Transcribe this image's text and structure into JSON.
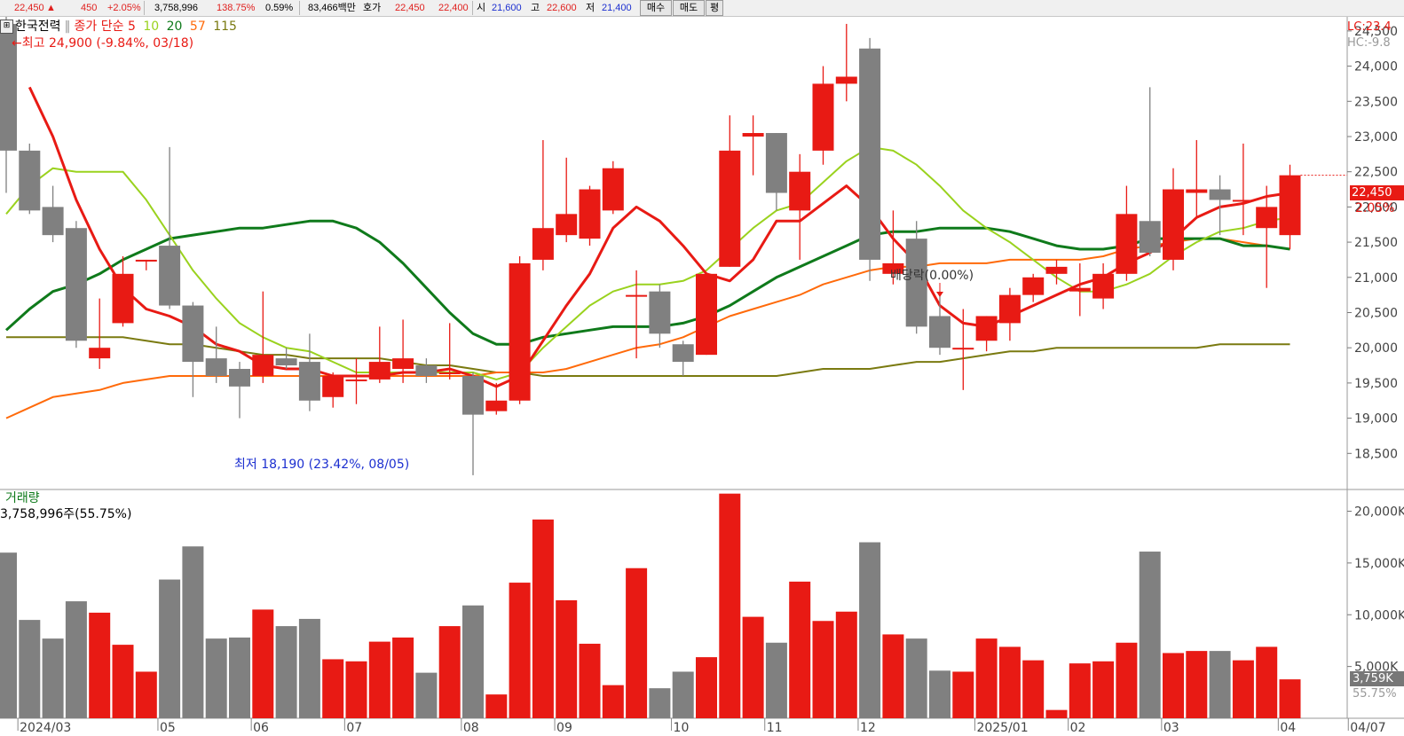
{
  "topbar": {
    "price": "22,450",
    "up_icon": "▲",
    "change": "450",
    "change_pct": "+2.05%",
    "volume": "3,758,996",
    "volume_ratio": "138.75%",
    "turnover": "0.59%",
    "amount": "83,466백만",
    "hoga_label": "호가",
    "hoga_ask": "22,450",
    "hoga_bid": "22,400",
    "open_label": "시",
    "open": "21,600",
    "high_label": "고",
    "high": "22,600",
    "low_label": "저",
    "low": "21,400",
    "buy_button": "매수",
    "sell_button": "매도",
    "avg_button": "평"
  },
  "legend": {
    "stock_name": "한국전력",
    "close_label": "종가 단순",
    "ma": [
      {
        "period": "5",
        "color": "#e81a14"
      },
      {
        "period": "10",
        "color": "#9ad21e"
      },
      {
        "period": "20",
        "color": "#0f7a1b"
      },
      {
        "period": "57",
        "color": "#ff6a0a"
      },
      {
        "period": "115",
        "color": "#7a7a10"
      }
    ],
    "high_note": "←최고 24,900 (-9.84%, 03/18)",
    "low_note": "최저 18,190 (23.42%, 08/05)",
    "dividend_note": "배당락(0.00%)"
  },
  "right_panel": {
    "lc": "LC:23.4",
    "hc": "HC:-9.8",
    "current_price": "22,450",
    "current_pct": "2.05%",
    "volume_current": "3,759K",
    "volume_pct": "55.75%"
  },
  "volume_panel": {
    "title": "거래량",
    "current_value": "3,758,996주(55.75%)"
  },
  "chart_data": {
    "type": "candlestick",
    "price_axis": {
      "ylim": [
        18000,
        24700
      ],
      "ticks": [
        "24,500",
        "24,000",
        "23,500",
        "23,000",
        "22,500",
        "22,000",
        "21,500",
        "21,000",
        "20,500",
        "20,000",
        "19,500",
        "19,000",
        "18,500"
      ],
      "tick_values": [
        24500,
        24000,
        23500,
        23000,
        22500,
        22000,
        21500,
        21000,
        20500,
        20000,
        19500,
        19000,
        18500
      ]
    },
    "volume_axis": {
      "ylim": [
        0,
        21500
      ],
      "ticks": [
        "20,000K",
        "15,000K",
        "10,000K",
        "5,000K"
      ],
      "tick_values": [
        20000,
        15000,
        10000,
        5000
      ]
    },
    "x_labels": [
      {
        "index": 1,
        "label": "2024/03"
      },
      {
        "index": 7,
        "label": "05"
      },
      {
        "index": 11,
        "label": "06"
      },
      {
        "index": 15,
        "label": "07"
      },
      {
        "index": 20,
        "label": "08"
      },
      {
        "index": 24,
        "label": "09"
      },
      {
        "index": 29,
        "label": "10"
      },
      {
        "index": 33,
        "label": "11"
      },
      {
        "index": 37,
        "label": "12"
      },
      {
        "index": 42,
        "label": "2025/01"
      },
      {
        "index": 46,
        "label": "02"
      },
      {
        "index": 50,
        "label": "03"
      },
      {
        "index": 55,
        "label": "04"
      },
      {
        "index": 58,
        "label": "04/07"
      }
    ],
    "candles": [
      {
        "o": 24600,
        "h": 24850,
        "l": 22200,
        "c": 22800,
        "v": 16000
      },
      {
        "o": 22800,
        "h": 22900,
        "l": 21900,
        "c": 21950,
        "v": 9500
      },
      {
        "o": 22000,
        "h": 22300,
        "l": 21500,
        "c": 21600,
        "v": 7700
      },
      {
        "o": 21700,
        "h": 21800,
        "l": 20000,
        "c": 20100,
        "v": 11300
      },
      {
        "o": 19850,
        "h": 20700,
        "l": 19700,
        "c": 20000,
        "v": 10200
      },
      {
        "o": 20350,
        "h": 21300,
        "l": 20300,
        "c": 21050,
        "v": 7100
      },
      {
        "o": 21250,
        "h": 21250,
        "l": 21100,
        "c": 21250,
        "v": 4500
      },
      {
        "o": 21450,
        "h": 22850,
        "l": 20550,
        "c": 20600,
        "v": 13400
      },
      {
        "o": 20600,
        "h": 20650,
        "l": 19300,
        "c": 19800,
        "v": 16600
      },
      {
        "o": 19850,
        "h": 20300,
        "l": 19500,
        "c": 19600,
        "v": 7700
      },
      {
        "o": 19700,
        "h": 19800,
        "l": 19000,
        "c": 19450,
        "v": 7800
      },
      {
        "o": 19600,
        "h": 20800,
        "l": 19500,
        "c": 19900,
        "v": 10500
      },
      {
        "o": 19850,
        "h": 20000,
        "l": 19700,
        "c": 19750,
        "v": 8900
      },
      {
        "o": 19800,
        "h": 20200,
        "l": 19100,
        "c": 19250,
        "v": 9600
      },
      {
        "o": 19300,
        "h": 19650,
        "l": 19150,
        "c": 19600,
        "v": 5700
      },
      {
        "o": 19550,
        "h": 19850,
        "l": 19200,
        "c": 19550,
        "v": 5500
      },
      {
        "o": 19550,
        "h": 20300,
        "l": 19500,
        "c": 19800,
        "v": 7400
      },
      {
        "o": 19700,
        "h": 20400,
        "l": 19500,
        "c": 19850,
        "v": 7800
      },
      {
        "o": 19750,
        "h": 19850,
        "l": 19500,
        "c": 19600,
        "v": 4400
      },
      {
        "o": 19650,
        "h": 20350,
        "l": 19550,
        "c": 19650,
        "v": 8900
      },
      {
        "o": 19600,
        "h": 19650,
        "l": 18190,
        "c": 19050,
        "v": 10900
      },
      {
        "o": 19100,
        "h": 19500,
        "l": 19050,
        "c": 19250,
        "v": 2300
      },
      {
        "o": 19250,
        "h": 21300,
        "l": 19200,
        "c": 21200,
        "v": 13100
      },
      {
        "o": 21250,
        "h": 22950,
        "l": 21100,
        "c": 21700,
        "v": 19200
      },
      {
        "o": 21600,
        "h": 22700,
        "l": 21500,
        "c": 21900,
        "v": 11400
      },
      {
        "o": 21550,
        "h": 22300,
        "l": 21450,
        "c": 22250,
        "v": 7200
      },
      {
        "o": 21950,
        "h": 22650,
        "l": 21900,
        "c": 22550,
        "v": 3200
      },
      {
        "o": 20750,
        "h": 21100,
        "l": 19850,
        "c": 20750,
        "v": 14500
      },
      {
        "o": 20800,
        "h": 20900,
        "l": 20000,
        "c": 20200,
        "v": 2900
      },
      {
        "o": 20050,
        "h": 20100,
        "l": 19600,
        "c": 19800,
        "v": 4500
      },
      {
        "o": 19900,
        "h": 21050,
        "l": 19900,
        "c": 21050,
        "v": 5900
      },
      {
        "o": 21150,
        "h": 23300,
        "l": 21150,
        "c": 22800,
        "v": 21700
      },
      {
        "o": 23000,
        "h": 23300,
        "l": 22450,
        "c": 23050,
        "v": 9800
      },
      {
        "o": 23050,
        "h": 23050,
        "l": 21950,
        "c": 22200,
        "v": 7300
      },
      {
        "o": 21950,
        "h": 22750,
        "l": 21250,
        "c": 22500,
        "v": 13200
      },
      {
        "o": 22800,
        "h": 24000,
        "l": 22600,
        "c": 23750,
        "v": 9400
      },
      {
        "o": 23750,
        "h": 24600,
        "l": 23500,
        "c": 23850,
        "v": 10300
      },
      {
        "o": 24250,
        "h": 24400,
        "l": 20950,
        "c": 21250,
        "v": 17000
      },
      {
        "o": 21050,
        "h": 21950,
        "l": 20900,
        "c": 21200,
        "v": 8100
      },
      {
        "o": 21550,
        "h": 21800,
        "l": 20200,
        "c": 20300,
        "v": 7700
      },
      {
        "o": 20450,
        "h": 20800,
        "l": 19900,
        "c": 20000,
        "v": 4600
      },
      {
        "o": 20000,
        "h": 20550,
        "l": 19400,
        "c": 20000,
        "v": 4500
      },
      {
        "o": 20100,
        "h": 20450,
        "l": 19950,
        "c": 20450,
        "v": 7700
      },
      {
        "o": 20350,
        "h": 20850,
        "l": 20100,
        "c": 20750,
        "v": 6900
      },
      {
        "o": 20750,
        "h": 21050,
        "l": 20650,
        "c": 21000,
        "v": 5600
      },
      {
        "o": 21050,
        "h": 21250,
        "l": 20900,
        "c": 21150,
        "v": 800
      },
      {
        "o": 20800,
        "h": 21200,
        "l": 20450,
        "c": 20850,
        "v": 5300
      },
      {
        "o": 20700,
        "h": 21200,
        "l": 20550,
        "c": 21050,
        "v": 5500
      },
      {
        "o": 21050,
        "h": 22300,
        "l": 20950,
        "c": 21900,
        "v": 7300
      },
      {
        "o": 21800,
        "h": 23700,
        "l": 21300,
        "c": 21350,
        "v": 16100
      },
      {
        "o": 21250,
        "h": 22550,
        "l": 21100,
        "c": 22250,
        "v": 6300
      },
      {
        "o": 22200,
        "h": 22950,
        "l": 21850,
        "c": 22250,
        "v": 6500
      },
      {
        "o": 22250,
        "h": 22450,
        "l": 21600,
        "c": 22100,
        "v": 6500
      },
      {
        "o": 22100,
        "h": 22900,
        "l": 21600,
        "c": 22100,
        "v": 5600
      },
      {
        "o": 21700,
        "h": 22300,
        "l": 20850,
        "c": 22000,
        "v": 6900
      },
      {
        "o": 21600,
        "h": 22600,
        "l": 21400,
        "c": 22450,
        "v": 3759
      }
    ],
    "ma_lines": [
      {
        "name": "5",
        "color": "#e81a14",
        "width": 3,
        "values": [
          null,
          23700,
          23000,
          22100,
          21400,
          20850,
          20550,
          20450,
          20300,
          20050,
          19950,
          19750,
          19700,
          19700,
          19600,
          19600,
          19600,
          19650,
          19650,
          19700,
          19600,
          19450,
          19600,
          20100,
          20600,
          21050,
          21700,
          22000,
          21800,
          21450,
          21050,
          20950,
          21250,
          21800,
          21800,
          22050,
          22300,
          22000,
          21550,
          21200,
          20600,
          20350,
          20300,
          20450,
          20600,
          20750,
          20900,
          21000,
          21200,
          21350,
          21550,
          21850,
          22000,
          22050,
          22150,
          22200
        ]
      },
      {
        "name": "10",
        "color": "#9ad21e",
        "width": 2,
        "values": [
          21900,
          22300,
          22550,
          22500,
          22500,
          22500,
          22100,
          21600,
          21100,
          20700,
          20350,
          20150,
          20000,
          19950,
          19800,
          19650,
          19650,
          19650,
          19650,
          19650,
          19650,
          19550,
          19650,
          20000,
          20300,
          20600,
          20800,
          20900,
          20900,
          20950,
          21100,
          21400,
          21700,
          21950,
          22050,
          22350,
          22650,
          22850,
          22800,
          22600,
          22300,
          21950,
          21700,
          21500,
          21250,
          21000,
          20800,
          20800,
          20900,
          21050,
          21300,
          21500,
          21650,
          21700,
          21800,
          21850
        ]
      },
      {
        "name": "20",
        "color": "#0f7a1b",
        "width": 3,
        "values": [
          20250,
          20550,
          20800,
          20900,
          21050,
          21250,
          21400,
          21550,
          21600,
          21650,
          21700,
          21700,
          21750,
          21800,
          21800,
          21700,
          21500,
          21200,
          20850,
          20500,
          20200,
          20050,
          20050,
          20150,
          20200,
          20250,
          20300,
          20300,
          20300,
          20350,
          20450,
          20600,
          20800,
          21000,
          21150,
          21300,
          21450,
          21600,
          21650,
          21650,
          21700,
          21700,
          21700,
          21650,
          21550,
          21450,
          21400,
          21400,
          21450,
          21550,
          21550,
          21550,
          21550,
          21450,
          21450,
          21400
        ]
      },
      {
        "name": "57",
        "color": "#ff6a0a",
        "width": 2,
        "values": [
          19000,
          19150,
          19300,
          19350,
          19400,
          19500,
          19550,
          19600,
          19600,
          19600,
          19600,
          19600,
          19600,
          19600,
          19600,
          19600,
          19600,
          19600,
          19600,
          19600,
          19600,
          19650,
          19650,
          19650,
          19700,
          19800,
          19900,
          20000,
          20050,
          20150,
          20300,
          20450,
          20550,
          20650,
          20750,
          20900,
          21000,
          21100,
          21150,
          21150,
          21200,
          21200,
          21200,
          21250,
          21250,
          21250,
          21250,
          21300,
          21400,
          21450,
          21500,
          21550,
          21550,
          21500,
          21450,
          21400
        ]
      },
      {
        "name": "115",
        "color": "#7a7a10",
        "width": 2,
        "values": [
          20150,
          20150,
          20150,
          20150,
          20150,
          20150,
          20100,
          20050,
          20050,
          20000,
          19950,
          19900,
          19900,
          19850,
          19850,
          19850,
          19850,
          19800,
          19750,
          19750,
          19700,
          19650,
          19650,
          19600,
          19600,
          19600,
          19600,
          19600,
          19600,
          19600,
          19600,
          19600,
          19600,
          19600,
          19650,
          19700,
          19700,
          19700,
          19750,
          19800,
          19800,
          19850,
          19900,
          19950,
          19950,
          20000,
          20000,
          20000,
          20000,
          20000,
          20000,
          20000,
          20050,
          20050,
          20050,
          20050
        ]
      }
    ]
  }
}
